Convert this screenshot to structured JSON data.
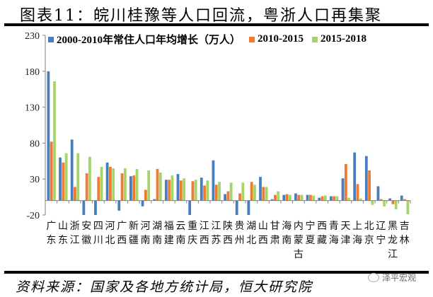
{
  "header": {
    "title": "图表11：皖川桂豫等人口回流，粤浙人口再集聚"
  },
  "footer": {
    "source": "资料来源：国家及各地方统计局，恒大研究院",
    "watermark": "泽平宏观"
  },
  "colors": {
    "s1": "#4a7ebb",
    "s2": "#f07b30",
    "s3": "#a5d46a",
    "axis": "#808080"
  },
  "legend": [
    {
      "label": "2000-2010年常住人口年均增长（万人）",
      "color": "#4a7ebb"
    },
    {
      "label": "2010-2015",
      "color": "#f07b30"
    },
    {
      "label": "2015-2018",
      "color": "#a5d46a"
    }
  ],
  "chart_data": {
    "type": "bar",
    "title": "皖川桂豫等人口回流，粤浙人口再集聚",
    "xlabel": "",
    "ylabel": "常住人口年均增长（万人）",
    "ylim": [
      -20,
      230
    ],
    "yticks": [
      230,
      180,
      130,
      80,
      30,
      -20
    ],
    "grid": false,
    "legend_position": "top",
    "categories": [
      "广东",
      "山东",
      "浙江",
      "安徽",
      "四川",
      "河北",
      "广西",
      "新疆",
      "河南",
      "湖南",
      "福建",
      "云南",
      "重庆",
      "江西",
      "江苏",
      "陕西",
      "贵州",
      "湖北",
      "山西",
      "甘肃",
      "海南",
      "内蒙古",
      "宁夏",
      "西藏",
      "青海",
      "天津",
      "上海",
      "北京",
      "辽宁",
      "黑龙江",
      "吉林"
    ],
    "series": [
      {
        "name": "2000-2010年常住人口年均增长（万人）",
        "values": [
          180,
          60,
          85,
          -20,
          -20,
          53,
          -14,
          34,
          -8,
          2,
          29,
          37,
          -20,
          32,
          56,
          9,
          -20,
          -20,
          33,
          2,
          8,
          10,
          8,
          4,
          6,
          31,
          67,
          62,
          20,
          3,
          7
        ]
      },
      {
        "name": "2010-2015",
        "values": [
          82,
          53,
          19,
          38,
          33,
          47,
          38,
          35,
          15,
          44,
          29,
          28,
          27,
          21,
          22,
          13,
          10,
          26,
          19,
          8,
          9,
          8,
          8,
          6,
          6,
          51,
          23,
          42,
          2,
          -5,
          2
        ]
      },
      {
        "name": "2015-2018",
        "values": [
          166,
          66,
          66,
          61,
          47,
          45,
          45,
          44,
          42,
          39,
          35,
          31,
          29,
          28,
          26,
          25,
          25,
          22,
          19,
          13,
          8,
          8,
          7,
          7,
          6,
          4,
          3,
          -6,
          -8,
          -12,
          -19
        ]
      }
    ]
  }
}
